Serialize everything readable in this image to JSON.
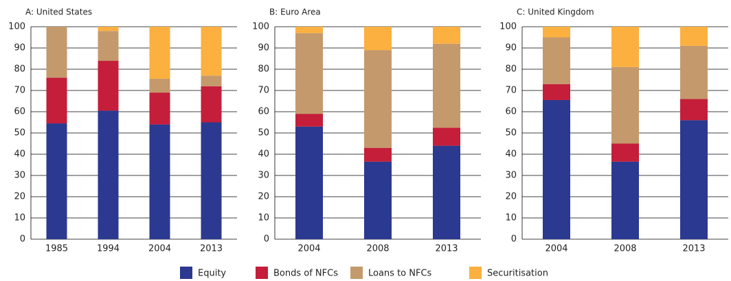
{
  "chart_data": [
    {
      "type": "bar",
      "stacked": true,
      "title": "A: United States",
      "categories": [
        "1985",
        "1994",
        "2004",
        "2013"
      ],
      "series": [
        {
          "name": "Equity",
          "color": "#2b3990",
          "values": [
            54.5,
            60.5,
            54,
            55
          ]
        },
        {
          "name": "Bonds of NFCs",
          "color": "#c41e3a",
          "values": [
            21.5,
            23.5,
            15,
            17
          ]
        },
        {
          "name": "Loans to NFCs",
          "color": "#c49a6c",
          "values": [
            24,
            14,
            6.5,
            5
          ]
        },
        {
          "name": "Securitisation",
          "color": "#fbb040",
          "values": [
            0,
            2,
            24.5,
            23
          ]
        }
      ],
      "ylim": [
        0,
        100
      ],
      "yticks": [
        0,
        10,
        20,
        30,
        40,
        50,
        60,
        70,
        80,
        90,
        100
      ],
      "grid": true
    },
    {
      "type": "bar",
      "stacked": true,
      "title": "B: Euro Area",
      "categories": [
        "2004",
        "2008",
        "2013"
      ],
      "series": [
        {
          "name": "Equity",
          "color": "#2b3990",
          "values": [
            53,
            36.5,
            44
          ]
        },
        {
          "name": "Bonds of NFCs",
          "color": "#c41e3a",
          "values": [
            6,
            6.5,
            8.5
          ]
        },
        {
          "name": "Loans to NFCs",
          "color": "#c49a6c",
          "values": [
            38,
            46,
            39.5
          ]
        },
        {
          "name": "Securitisation",
          "color": "#fbb040",
          "values": [
            3,
            11,
            8
          ]
        }
      ],
      "ylim": [
        0,
        100
      ],
      "yticks": [
        0,
        10,
        20,
        30,
        40,
        50,
        60,
        70,
        80,
        90,
        100
      ],
      "grid": true
    },
    {
      "type": "bar",
      "stacked": true,
      "title": "C: United Kingdom",
      "categories": [
        "2004",
        "2008",
        "2013"
      ],
      "series": [
        {
          "name": "Equity",
          "color": "#2b3990",
          "values": [
            65.5,
            36.5,
            56
          ]
        },
        {
          "name": "Bonds of NFCs",
          "color": "#c41e3a",
          "values": [
            7.5,
            8.5,
            10
          ]
        },
        {
          "name": "Loans to NFCs",
          "color": "#c49a6c",
          "values": [
            22,
            36,
            25
          ]
        },
        {
          "name": "Securitisation",
          "color": "#fbb040",
          "values": [
            5,
            19,
            9
          ]
        }
      ],
      "ylim": [
        0,
        100
      ],
      "yticks": [
        0,
        10,
        20,
        30,
        40,
        50,
        60,
        70,
        80,
        90,
        100
      ],
      "grid": true
    }
  ]
}
